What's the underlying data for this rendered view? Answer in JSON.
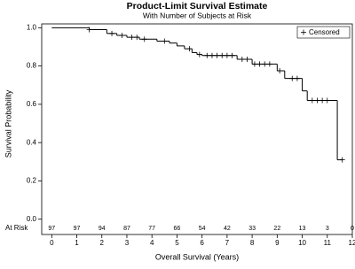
{
  "chart_data": {
    "type": "step",
    "title": "Product-Limit Survival Estimate",
    "subtitle": "With Number of Subjects at Risk",
    "x_label": "Overall Survival (Years)",
    "y_label": "Survival Probability",
    "color": "#000000",
    "x": [
      0,
      1.5,
      2.2,
      2.6,
      3.0,
      3.5,
      4.2,
      4.7,
      5.0,
      5.3,
      5.6,
      5.8,
      6.0,
      7.4,
      8.0,
      9.0,
      9.3,
      10.0,
      10.2,
      11.4,
      11.6
    ],
    "values": [
      1.0,
      0.99,
      0.97,
      0.96,
      0.95,
      0.94,
      0.93,
      0.92,
      0.905,
      0.89,
      0.87,
      0.86,
      0.855,
      0.835,
      0.81,
      0.775,
      0.735,
      0.67,
      0.62,
      0.31,
      0.31
    ],
    "censored": {
      "name": "Censored",
      "x": [
        1.5,
        2.4,
        2.8,
        3.2,
        3.4,
        3.7,
        4.5,
        5.5,
        5.9,
        6.2,
        6.4,
        6.6,
        6.8,
        7.0,
        7.2,
        7.6,
        7.8,
        8.1,
        8.3,
        8.5,
        8.7,
        9.1,
        9.6,
        9.8,
        10.4,
        10.6,
        10.8,
        11.0,
        11.6
      ],
      "values": [
        0.99,
        0.97,
        0.96,
        0.95,
        0.95,
        0.94,
        0.93,
        0.89,
        0.86,
        0.855,
        0.855,
        0.855,
        0.855,
        0.855,
        0.855,
        0.835,
        0.835,
        0.81,
        0.81,
        0.81,
        0.81,
        0.775,
        0.735,
        0.735,
        0.62,
        0.62,
        0.62,
        0.62,
        0.31
      ]
    },
    "at_risk_label": "At Risk",
    "at_risk": [
      97,
      97,
      94,
      87,
      77,
      66,
      54,
      42,
      33,
      22,
      13,
      3,
      0
    ],
    "xlim": [
      -0.4,
      12.0
    ],
    "ylim": [
      -0.08,
      1.02
    ],
    "xticks": [
      0,
      1,
      2,
      3,
      4,
      5,
      6,
      7,
      8,
      9,
      10,
      11,
      12
    ],
    "yticks": [
      {
        "value": 0,
        "label": "0.0"
      },
      0.2,
      0.4,
      0.6,
      0.8,
      {
        "value": 1,
        "label": "1.0"
      }
    ],
    "legend": "top-right"
  }
}
